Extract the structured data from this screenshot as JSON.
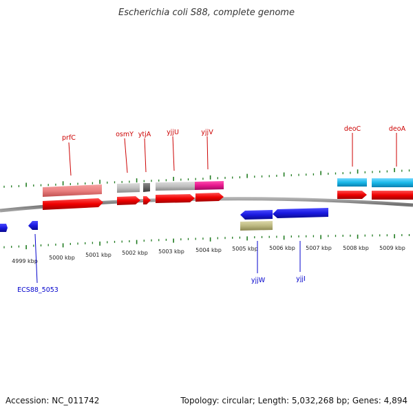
{
  "title": "Escherichia coli S88, complete genome",
  "footer": {
    "accession": "Accession: NC_011742",
    "stats": "Topology: circular; Length: 5,032,268 bp; Genes: 4,894"
  },
  "axis_labels": [
    "4999 kbp",
    "5000 kbp",
    "5001 kbp",
    "5002 kbp",
    "5003 kbp",
    "5004 kbp",
    "5005 kbp",
    "5006 kbp",
    "5007 kbp",
    "5008 kbp",
    "5009 kbp"
  ],
  "genes_top": [
    "prfC",
    "osmY",
    "ytjA",
    "yjjU",
    "yjjV",
    "deoC",
    "deoA"
  ],
  "genes_bottom": [
    "ECS88_5053",
    "yjjW",
    "yjjI"
  ],
  "colors": {
    "cds_red": "#ee0000",
    "gene_blue": "#1a1ae0",
    "rna_pink": "#ea8080",
    "gray_feature": "#c0c0c0",
    "magenta_feature": "#e6188e",
    "cyan_feature": "#19b8e8",
    "olive_feature": "#bcb880",
    "tick_green": "#1e7a1e",
    "backbone": "#808080"
  }
}
